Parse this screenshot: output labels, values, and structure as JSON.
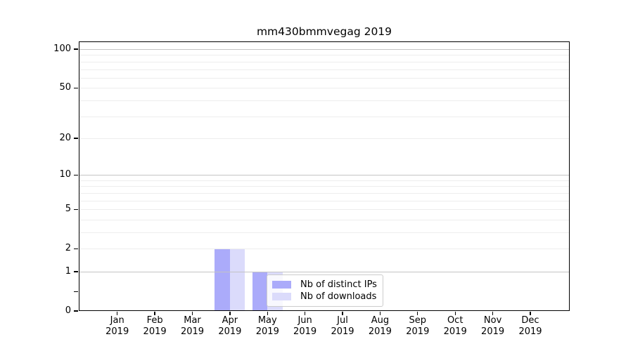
{
  "chart_data": {
    "type": "bar",
    "title": "mm430bmmvegag 2019",
    "x_year": "2019",
    "categories": [
      "Jan",
      "Feb",
      "Mar",
      "Apr",
      "May",
      "Jun",
      "Jul",
      "Aug",
      "Sep",
      "Oct",
      "Nov",
      "Dec"
    ],
    "series": [
      {
        "name": "Nb of distinct IPs",
        "color": "#ababfa",
        "values": [
          0,
          0,
          0,
          2,
          1,
          0,
          0,
          0,
          0,
          0,
          0,
          0
        ]
      },
      {
        "name": "Nb of downloads",
        "color": "#dbdbfb",
        "values": [
          0,
          0,
          0,
          2,
          1,
          0,
          0,
          0,
          0,
          0,
          0,
          0
        ]
      }
    ],
    "y_axis": {
      "scale": "log1p",
      "range": [
        0,
        115
      ],
      "tick_labels": [
        "100",
        "50",
        "20",
        "10",
        "5",
        "2",
        "1",
        "0"
      ],
      "tick_values": [
        100,
        50,
        20,
        10,
        5,
        2,
        1,
        0
      ],
      "unlabeled_minor_tick_values": [
        0.4
      ],
      "major_grid_values": [
        1,
        10,
        100
      ],
      "minor_grid_values": [
        2,
        3,
        4,
        5,
        6,
        7,
        8,
        9,
        20,
        30,
        40,
        50,
        60,
        70,
        80,
        90
      ]
    },
    "grid": true,
    "legend": {
      "position": "lower-center",
      "entries": [
        "Nb of distinct IPs",
        "Nb of downloads"
      ]
    }
  }
}
